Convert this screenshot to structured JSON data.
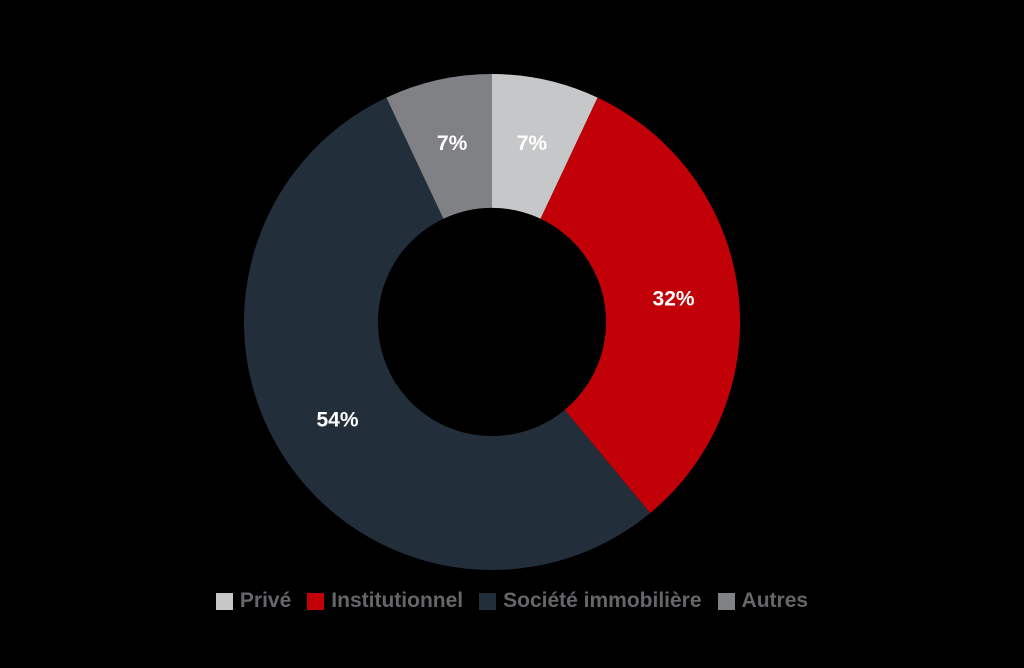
{
  "page": {
    "background_color": "#000000"
  },
  "chart_data": {
    "type": "pie",
    "subtype": "donut",
    "categories": [
      "Privé",
      "Institutionnel",
      "Société immobilière",
      "Autres"
    ],
    "values": [
      7,
      32,
      54,
      7
    ],
    "labels": [
      "7%",
      "32%",
      "54%",
      "7%"
    ],
    "unit": "%",
    "colors": [
      "#c6c7c8",
      "#c20008",
      "#222e3a",
      "#808184"
    ],
    "title": "",
    "start_angle_deg": 0,
    "direction": "clockwise",
    "inner_radius_ratio": 0.46,
    "label_color": "#ffffff",
    "legend_position": "bottom"
  },
  "legend": {
    "text_color": "#646669"
  }
}
